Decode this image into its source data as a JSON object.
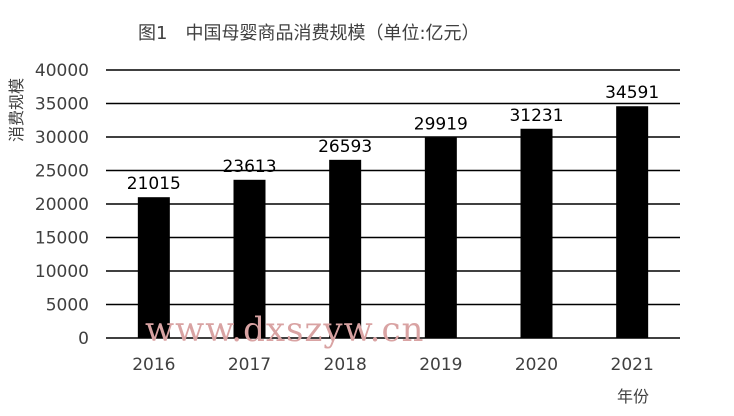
{
  "chart_data": {
    "type": "bar",
    "title": "图1　中国母婴商品消费规模（单位:亿元）",
    "ylabel": "消费规模",
    "xlabel": "年份",
    "categories": [
      "2016",
      "2017",
      "2018",
      "2019",
      "2020",
      "2021"
    ],
    "values": [
      21015,
      23613,
      26593,
      29919,
      31231,
      34591
    ],
    "ylim": [
      0,
      40000
    ],
    "yticks": [
      0,
      5000,
      10000,
      15000,
      20000,
      25000,
      30000,
      35000,
      40000
    ],
    "grid": true,
    "legend": "none",
    "bar_color": "#000000"
  },
  "watermark": "www.dxszyw.cn"
}
